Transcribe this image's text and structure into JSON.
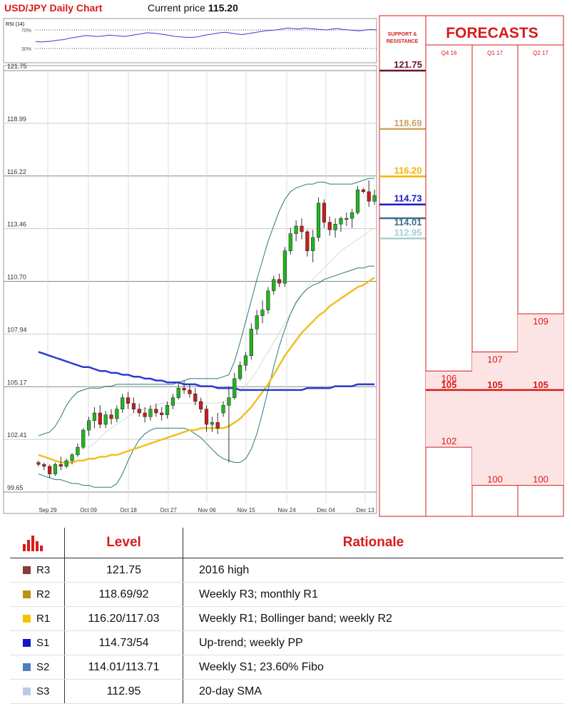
{
  "header": {
    "title": "USD/JPY Daily Chart",
    "price_label": "Current price",
    "price_value": "115.20"
  },
  "rsi": {
    "label": "RSI (14)",
    "ticks": [
      "70%",
      "30%"
    ],
    "values": [
      45,
      44,
      45,
      46,
      48,
      49,
      52,
      54,
      56,
      58,
      57,
      56,
      57,
      59,
      58,
      57,
      56,
      58,
      60,
      62,
      64,
      63,
      62,
      60,
      58,
      56,
      55,
      54,
      54,
      55,
      58,
      60,
      62,
      64,
      65,
      63,
      61,
      60,
      62,
      64,
      66,
      68,
      69,
      70,
      72,
      74,
      73,
      72,
      74,
      73,
      72,
      71,
      70,
      72,
      73,
      71,
      70,
      69,
      68,
      70,
      71,
      70
    ]
  },
  "sr_panel": {
    "heading_line1": "SUPPORT &",
    "heading_line2": "RESISTANCE",
    "levels": [
      {
        "value": 121.75,
        "label": "121.75",
        "color": "#6b1230"
      },
      {
        "value": 118.69,
        "label": "118.69",
        "color": "#c8a45a"
      },
      {
        "value": 116.2,
        "label": "116.20",
        "color": "#f2b400"
      },
      {
        "value": 114.73,
        "label": "114.73",
        "color": "#1a1ac8"
      },
      {
        "value": 114.01,
        "label": "114.01",
        "color": "#3d6f8c"
      },
      {
        "value": 112.95,
        "label": "112.95",
        "color": "#a8cfcf"
      }
    ]
  },
  "forecasts": {
    "title": "FORECASTS",
    "current_line": 105,
    "columns": [
      {
        "quarter": "Q4 16",
        "low": 102,
        "mid": 105,
        "high": 106
      },
      {
        "quarter": "Q1 17",
        "low": 100,
        "mid": 105,
        "high": 107
      },
      {
        "quarter": "Q2 17",
        "low": 100,
        "mid": 105,
        "high": 109
      }
    ],
    "low_labels": [
      "102",
      "100",
      "100"
    ],
    "mid_labels": [
      "105",
      "105",
      "105"
    ],
    "high_labels": [
      "106",
      "107",
      "109"
    ]
  },
  "chart_data": {
    "type": "candlestick",
    "title": "USD/JPY Daily Chart",
    "y_ticks": [
      "121.75",
      "118.99",
      "116.22",
      "113.46",
      "110.70",
      "107.94",
      "105.17",
      "102.41",
      "99.65"
    ],
    "y_range": [
      99.65,
      121.75
    ],
    "x_ticks": [
      "Sep 29",
      "Oct 09",
      "Oct 18",
      "Oct 27",
      "Nov 06",
      "Nov 15",
      "Nov 24",
      "Dec 04",
      "Dec 13"
    ],
    "candles": [
      [
        101.2,
        101.3,
        101.0,
        101.1
      ],
      [
        101.1,
        101.2,
        100.8,
        101.0
      ],
      [
        101.0,
        101.1,
        100.4,
        100.6
      ],
      [
        100.6,
        101.2,
        100.5,
        101.1
      ],
      [
        101.1,
        101.5,
        100.8,
        101.0
      ],
      [
        101.0,
        101.4,
        100.9,
        101.3
      ],
      [
        101.3,
        101.7,
        101.1,
        101.6
      ],
      [
        101.6,
        102.2,
        101.5,
        102.0
      ],
      [
        102.0,
        103.0,
        101.9,
        102.9
      ],
      [
        102.9,
        103.6,
        102.6,
        103.4
      ],
      [
        103.4,
        104.1,
        103.0,
        103.8
      ],
      [
        103.8,
        104.2,
        103.0,
        103.2
      ],
      [
        103.2,
        103.9,
        103.0,
        103.7
      ],
      [
        103.7,
        104.0,
        103.2,
        103.5
      ],
      [
        103.5,
        104.2,
        103.3,
        104.0
      ],
      [
        104.0,
        104.8,
        103.8,
        104.6
      ],
      [
        104.6,
        104.9,
        104.0,
        104.3
      ],
      [
        104.3,
        104.6,
        103.8,
        104.0
      ],
      [
        104.0,
        104.3,
        103.6,
        103.8
      ],
      [
        103.8,
        104.1,
        103.3,
        103.6
      ],
      [
        103.6,
        104.2,
        103.4,
        104.0
      ],
      [
        104.0,
        104.3,
        103.6,
        103.8
      ],
      [
        103.8,
        104.1,
        103.4,
        103.7
      ],
      [
        103.7,
        104.4,
        103.5,
        104.2
      ],
      [
        104.2,
        104.8,
        104.0,
        104.6
      ],
      [
        104.6,
        105.4,
        104.5,
        105.1
      ],
      [
        105.1,
        105.5,
        104.8,
        105.0
      ],
      [
        105.0,
        105.3,
        104.6,
        104.8
      ],
      [
        104.8,
        105.1,
        104.2,
        104.4
      ],
      [
        104.4,
        104.6,
        103.8,
        104.0
      ],
      [
        104.0,
        104.2,
        102.8,
        103.2
      ],
      [
        103.2,
        103.6,
        102.8,
        103.3
      ],
      [
        103.3,
        103.8,
        102.7,
        103.0
      ],
      [
        103.8,
        104.4,
        103.6,
        104.2
      ],
      [
        104.2,
        105.2,
        101.2,
        104.6
      ],
      [
        104.6,
        105.9,
        104.5,
        105.6
      ],
      [
        105.6,
        106.5,
        105.5,
        106.3
      ],
      [
        106.3,
        107.0,
        106.0,
        106.8
      ],
      [
        106.8,
        108.5,
        106.6,
        108.2
      ],
      [
        108.2,
        109.2,
        107.9,
        108.9
      ],
      [
        108.9,
        109.7,
        108.5,
        109.2
      ],
      [
        109.2,
        110.4,
        109.0,
        110.2
      ],
      [
        110.2,
        111.0,
        110.0,
        110.8
      ],
      [
        110.8,
        111.1,
        110.4,
        110.6
      ],
      [
        110.6,
        112.5,
        110.4,
        112.3
      ],
      [
        112.3,
        113.5,
        112.1,
        113.2
      ],
      [
        113.2,
        113.9,
        112.8,
        113.6
      ],
      [
        113.6,
        114.0,
        112.9,
        113.3
      ],
      [
        113.3,
        113.4,
        112.0,
        112.3
      ],
      [
        112.3,
        113.4,
        111.7,
        113.0
      ],
      [
        113.0,
        115.1,
        112.8,
        114.8
      ],
      [
        114.8,
        115.0,
        113.5,
        113.8
      ],
      [
        113.8,
        114.1,
        113.1,
        113.4
      ],
      [
        113.4,
        114.0,
        113.0,
        113.7
      ],
      [
        113.7,
        114.1,
        113.3,
        114.0
      ],
      [
        114.0,
        114.3,
        113.6,
        114.0
      ],
      [
        114.0,
        114.5,
        113.5,
        114.3
      ],
      [
        114.3,
        115.7,
        114.2,
        115.5
      ],
      [
        115.5,
        115.6,
        115.3,
        115.4
      ],
      [
        115.4,
        116.0,
        114.6,
        114.9
      ],
      [
        114.9,
        115.5,
        114.7,
        115.2
      ]
    ],
    "bollinger_upper": [
      102.6,
      102.7,
      102.8,
      103.1,
      103.6,
      104.2,
      104.6,
      104.9,
      105.0,
      105.1,
      105.1,
      105.1,
      105.2,
      105.2,
      105.3,
      105.3,
      105.3,
      105.3,
      105.3,
      105.3,
      105.3,
      105.3,
      105.3,
      105.3,
      105.3,
      105.4,
      105.5,
      105.6,
      105.6,
      105.6,
      105.6,
      105.6,
      105.6,
      105.7,
      105.8,
      106.5,
      107.5,
      108.6,
      109.7,
      110.8,
      111.8,
      112.8,
      113.6,
      114.4,
      115.0,
      115.4,
      115.6,
      115.7,
      115.8,
      115.8,
      115.9,
      115.9,
      115.8,
      115.8,
      115.8,
      115.8,
      115.8,
      115.9,
      116.0,
      116.1,
      116.1
    ],
    "bollinger_lower": [
      100.6,
      100.5,
      100.4,
      100.3,
      100.3,
      100.2,
      100.1,
      100.1,
      100.0,
      100.0,
      99.9,
      99.9,
      99.9,
      99.9,
      100.1,
      100.6,
      101.3,
      101.9,
      102.4,
      102.7,
      102.9,
      103.0,
      103.0,
      103.0,
      103.0,
      103.0,
      103.0,
      102.9,
      102.7,
      102.5,
      102.2,
      101.9,
      101.6,
      101.4,
      101.3,
      101.2,
      101.2,
      101.4,
      101.9,
      102.7,
      103.8,
      105.0,
      106.2,
      107.3,
      108.2,
      109.0,
      109.6,
      110.0,
      110.3,
      110.5,
      110.6,
      110.8,
      110.9,
      111.0,
      111.1,
      111.2,
      111.3,
      111.4,
      111.4,
      111.5,
      111.5
    ],
    "sma20": [
      null,
      null,
      null,
      null,
      null,
      null,
      null,
      null,
      null,
      102.0,
      102.2,
      102.5,
      102.8,
      103.0,
      103.2,
      103.4,
      103.6,
      103.8,
      103.9,
      104.0,
      104.1,
      104.2,
      104.3,
      104.3,
      104.3,
      104.3,
      104.3,
      104.3,
      104.3,
      104.3,
      104.3,
      104.3,
      104.3,
      104.4,
      104.5,
      104.7,
      104.9,
      105.2,
      105.6,
      106.0,
      106.5,
      107.0,
      107.5,
      108.0,
      108.5,
      109.0,
      109.5,
      110.0,
      110.4,
      110.8,
      111.1,
      111.4,
      111.7,
      112.0,
      112.3,
      112.5,
      112.7,
      112.9,
      113.1,
      113.3,
      113.5
    ],
    "sma_yellow": [
      101.6,
      101.5,
      101.4,
      101.3,
      101.2,
      101.2,
      101.2,
      101.3,
      101.3,
      101.4,
      101.4,
      101.5,
      101.5,
      101.6,
      101.6,
      101.7,
      101.8,
      101.9,
      102.0,
      102.1,
      102.2,
      102.3,
      102.4,
      102.5,
      102.6,
      102.7,
      102.8,
      102.9,
      102.9,
      103.0,
      103.0,
      103.0,
      103.0,
      103.0,
      103.1,
      103.3,
      103.5,
      103.8,
      104.1,
      104.5,
      104.9,
      105.3,
      105.8,
      106.3,
      106.8,
      107.2,
      107.6,
      108.0,
      108.3,
      108.6,
      108.9,
      109.1,
      109.4,
      109.6,
      109.8,
      110.0,
      110.2,
      110.4,
      110.5,
      110.7,
      110.9
    ],
    "sma_blue": [
      107.0,
      106.9,
      106.8,
      106.7,
      106.6,
      106.5,
      106.4,
      106.3,
      106.2,
      106.2,
      106.1,
      106.0,
      106.0,
      105.9,
      105.9,
      105.8,
      105.8,
      105.7,
      105.7,
      105.6,
      105.6,
      105.5,
      105.5,
      105.4,
      105.4,
      105.4,
      105.3,
      105.3,
      105.3,
      105.2,
      105.2,
      105.2,
      105.1,
      105.1,
      105.1,
      105.1,
      105.0,
      105.0,
      105.0,
      105.0,
      105.0,
      105.0,
      105.0,
      105.0,
      105.0,
      105.0,
      105.0,
      105.0,
      105.1,
      105.1,
      105.1,
      105.1,
      105.1,
      105.2,
      105.2,
      105.2,
      105.2,
      105.3,
      105.3,
      105.3,
      105.3
    ]
  },
  "levels_table": {
    "header_level": "Level",
    "header_rationale": "Rationale",
    "rows": [
      {
        "name": "R3",
        "level": "121.75",
        "rationale": "2016 high",
        "color": "#8b3a3a"
      },
      {
        "name": "R2",
        "level": "118.69/92",
        "rationale": "Weekly R3; monthly R1",
        "color": "#b8960c"
      },
      {
        "name": "R1",
        "level": "116.20/117.03",
        "rationale": "Weekly R1; Bollinger band; weekly R2",
        "color": "#f5c400"
      },
      {
        "name": "S1",
        "level": "114.73/54",
        "rationale": "Up-trend; weekly PP",
        "color": "#1414c8"
      },
      {
        "name": "S2",
        "level": "114.01/113.71",
        "rationale": "Weekly S1; 23.60% Fibo",
        "color": "#4f7fbf"
      },
      {
        "name": "S3",
        "level": "112.95",
        "rationale": "20-day SMA",
        "color": "#b8cde4"
      }
    ]
  }
}
